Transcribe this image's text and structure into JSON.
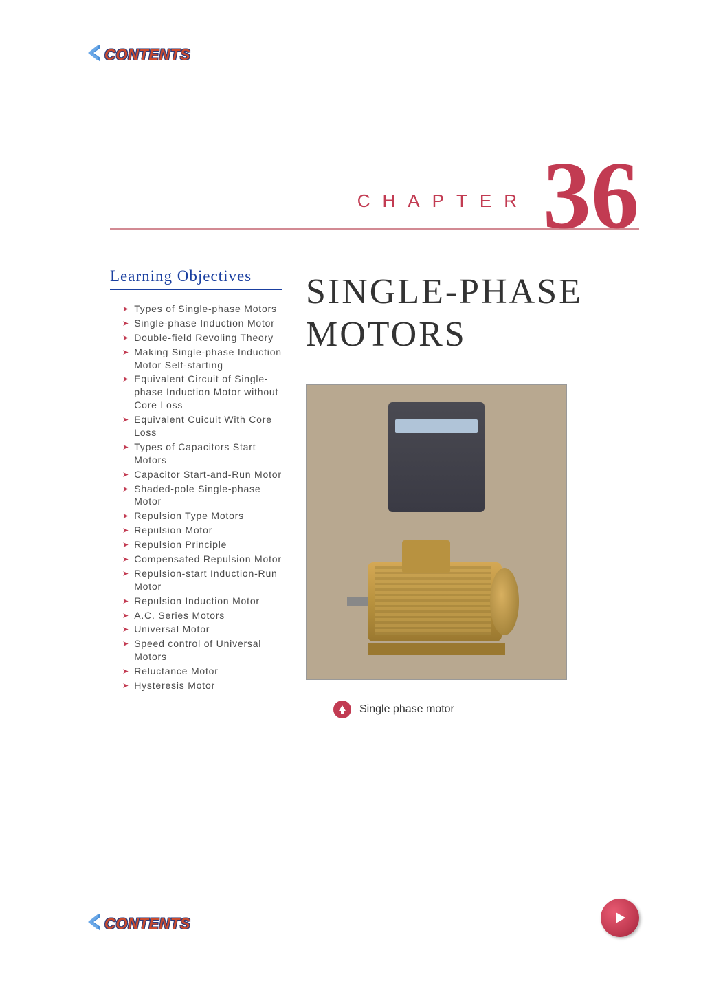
{
  "nav": {
    "contents_label": "CONTENTS",
    "contents_color": "#c94a2e",
    "contents_outline": "#2a3a7a",
    "chevron_color": "#4a8fd8"
  },
  "chapter": {
    "label": "CHAPTER",
    "number": "36",
    "accent_color": "#c23b52",
    "rule_color": "#d28a93"
  },
  "objectives": {
    "heading": "Learning Objectives",
    "heading_color": "#1a3fa0",
    "arrow_color": "#c23b52",
    "text_color": "#4a4a4a",
    "items": [
      "Types of Single-phase Motors",
      "Single-phase Induction Motor",
      "Double-field Revoling Theory",
      "Making Single-phase Induction Motor Self-starting",
      "Equivalent Circuit of Single-phase Induction Motor without Core Loss",
      "Equivalent Cuicuit With Core Loss",
      "Types of Capacitors Start Motors",
      "Capacitor Start-and-Run Motor",
      "Shaded-pole Single-phase Motor",
      "Repulsion Type Motors",
      "Repulsion Motor",
      "Repulsion Principle",
      "Compensated Repulsion Motor",
      "Repulsion-start Induction-Run Motor",
      "Repulsion Induction Motor",
      "A.C. Series Motors",
      "Universal Motor",
      "Speed control of Universal Motors",
      "Reluctance Motor",
      "Hysteresis Motor"
    ]
  },
  "title": {
    "line1": "SINGLE-PHASE",
    "line2": "MOTORS",
    "color": "#333333",
    "fontsize": 52
  },
  "figure": {
    "caption": "Single phase motor",
    "caption_color": "#333333",
    "bullet_bg": "#c23b52",
    "bullet_arrow_color": "#ffffff",
    "placeholder_bg": "#b8a890"
  },
  "next_button": {
    "bg": "#c23b52",
    "arrow_color": "#ffffff"
  }
}
